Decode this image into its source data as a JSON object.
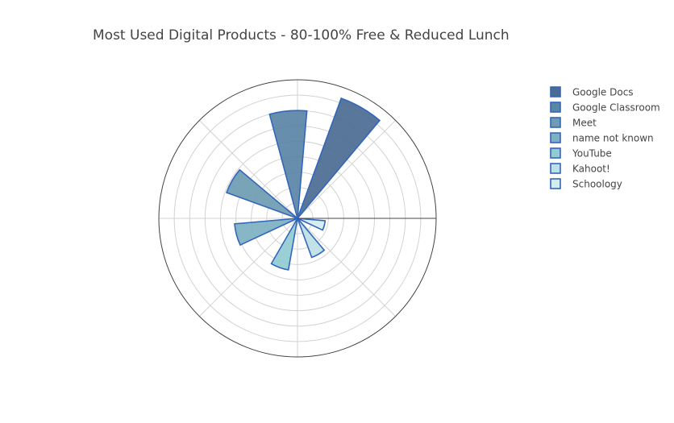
{
  "chart_data": {
    "type": "barpolar",
    "title": "Most Used Digital Products - 80-100% Free & Reduced Lunch",
    "angular_unit": "degrees",
    "direction": "counterclockwise",
    "rotation": 0,
    "bar_width_deg": 20,
    "radial_range": [
      0,
      9
    ],
    "radial_grid_step": 1,
    "angular_grid_step_deg": 45,
    "grid": true,
    "legend": "top-right",
    "series": [
      {
        "name": "Google Docs",
        "theta": 60,
        "r": 8.3,
        "color": "#4a6b92"
      },
      {
        "name": "Google Classroom",
        "theta": 95,
        "r": 7.0,
        "color": "#5a86a6"
      },
      {
        "name": "Meet",
        "theta": 150,
        "r": 4.9,
        "color": "#6e9cb2"
      },
      {
        "name": "name not known",
        "theta": 195,
        "r": 4.1,
        "color": "#7db1c1"
      },
      {
        "name": "YouTube",
        "theta": 250,
        "r": 3.4,
        "color": "#93cbd3"
      },
      {
        "name": "Kahoot!",
        "theta": 300,
        "r": 2.7,
        "color": "#bde0e6"
      },
      {
        "name": "Schoology",
        "theta": 345,
        "r": 1.8,
        "color": "#d2ecf0"
      }
    ],
    "marker_line_color": "#3366bb"
  }
}
